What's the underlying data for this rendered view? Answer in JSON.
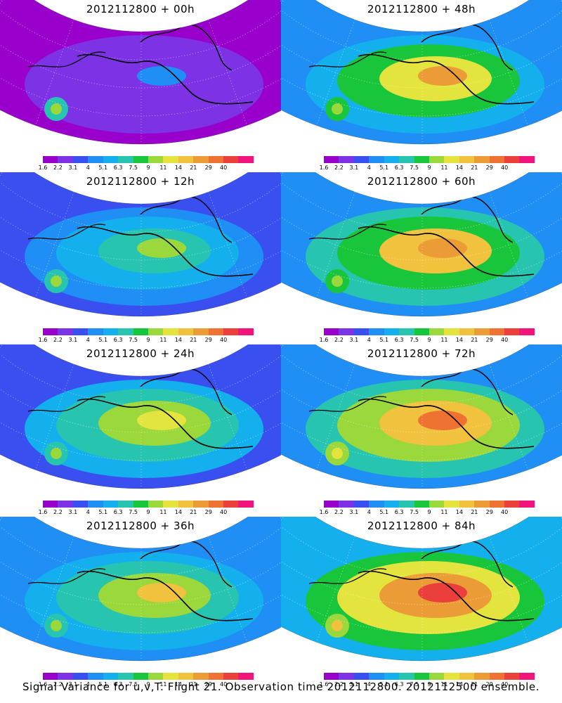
{
  "colorbar": {
    "colors": [
      "#9900cc",
      "#7d32e6",
      "#3a4ff0",
      "#1f8ff5",
      "#14b0ee",
      "#27c4b0",
      "#19c63b",
      "#9bd83b",
      "#e3e43e",
      "#f0c23e",
      "#ec9c37",
      "#f07233",
      "#ea3f3a",
      "#f0147c"
    ],
    "labels": [
      "1.6",
      "2.2",
      "3.1",
      "4",
      "5.1",
      "6.3",
      "7.5",
      "9",
      "11",
      "14",
      "21",
      "29",
      "40"
    ]
  },
  "panels": [
    {
      "title": "2012112800 + 00h",
      "level": 0.08
    },
    {
      "title": "2012112800 + 48h",
      "level": 0.62
    },
    {
      "title": "2012112800 + 12h",
      "level": 0.38
    },
    {
      "title": "2012112800 + 60h",
      "level": 0.66
    },
    {
      "title": "2012112800 + 24h",
      "level": 0.5
    },
    {
      "title": "2012112800 + 72h",
      "level": 0.72
    },
    {
      "title": "2012112800 + 36h",
      "level": 0.56
    },
    {
      "title": "2012112800 + 84h",
      "level": 0.78
    }
  ],
  "footer": "Signal Variance for u,v,T. Flight 21. Observation time 2012112800. 2012112500 ensemble."
}
